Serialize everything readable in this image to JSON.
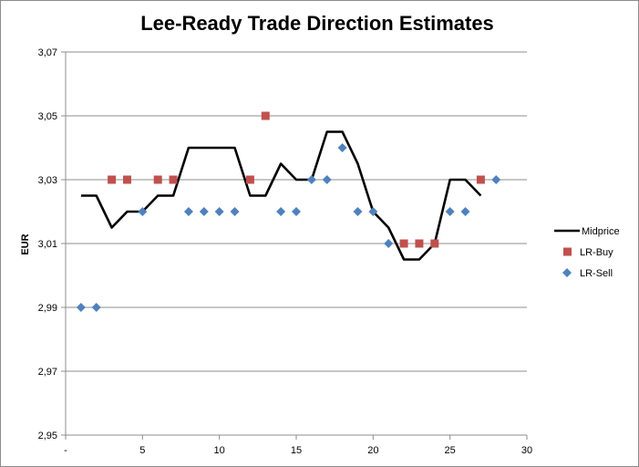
{
  "chart_data": {
    "type": "line",
    "title": "Lee-Ready Trade Direction Estimates",
    "xlabel": "",
    "ylabel": "EUR",
    "xlim": [
      0,
      30
    ],
    "ylim": [
      2.95,
      3.07
    ],
    "x_ticks": [
      "-",
      "5",
      "10",
      "15",
      "20",
      "25",
      "30"
    ],
    "y_ticks": [
      "2,95",
      "2,97",
      "2,99",
      "3,01",
      "3,03",
      "3,05",
      "3,07"
    ],
    "grid": "horizontal",
    "legend_position": "right",
    "series": [
      {
        "name": "Midprice",
        "style": "line",
        "color": "#000000",
        "points": [
          [
            1,
            3.025
          ],
          [
            2,
            3.025
          ],
          [
            3,
            3.015
          ],
          [
            4,
            3.02
          ],
          [
            5,
            3.02
          ],
          [
            6,
            3.025
          ],
          [
            7,
            3.025
          ],
          [
            8,
            3.04
          ],
          [
            9,
            3.04
          ],
          [
            10,
            3.04
          ],
          [
            11,
            3.04
          ],
          [
            12,
            3.025
          ],
          [
            13,
            3.025
          ],
          [
            14,
            3.035
          ],
          [
            15,
            3.03
          ],
          [
            16,
            3.03
          ],
          [
            17,
            3.045
          ],
          [
            18,
            3.045
          ],
          [
            19,
            3.035
          ],
          [
            20,
            3.02
          ],
          [
            21,
            3.015
          ],
          [
            22,
            3.005
          ],
          [
            23,
            3.005
          ],
          [
            24,
            3.01
          ],
          [
            25,
            3.03
          ],
          [
            26,
            3.03
          ],
          [
            27,
            3.025
          ]
        ]
      },
      {
        "name": "LR-Buy",
        "style": "square",
        "color": "#c0504d",
        "points": [
          [
            3,
            3.03
          ],
          [
            4,
            3.03
          ],
          [
            6,
            3.03
          ],
          [
            7,
            3.03
          ],
          [
            12,
            3.03
          ],
          [
            13,
            3.05
          ],
          [
            22,
            3.01
          ],
          [
            23,
            3.01
          ],
          [
            24,
            3.01
          ],
          [
            27,
            3.03
          ]
        ]
      },
      {
        "name": "LR-Sell",
        "style": "diamond",
        "color": "#4f81bd",
        "points": [
          [
            1,
            2.99
          ],
          [
            2,
            2.99
          ],
          [
            5,
            3.02
          ],
          [
            8,
            3.02
          ],
          [
            9,
            3.02
          ],
          [
            10,
            3.02
          ],
          [
            11,
            3.02
          ],
          [
            14,
            3.02
          ],
          [
            15,
            3.02
          ],
          [
            16,
            3.03
          ],
          [
            17,
            3.03
          ],
          [
            18,
            3.04
          ],
          [
            19,
            3.02
          ],
          [
            20,
            3.02
          ],
          [
            21,
            3.01
          ],
          [
            25,
            3.02
          ],
          [
            26,
            3.02
          ],
          [
            28,
            3.03
          ]
        ]
      }
    ]
  }
}
